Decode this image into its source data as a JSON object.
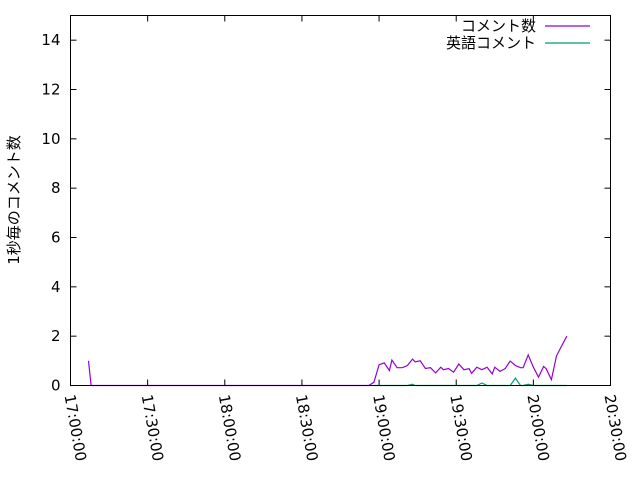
{
  "chart_data": {
    "type": "line",
    "title": "",
    "xlabel": "",
    "ylabel": "1秒毎のコメント数",
    "xlim": [
      "17:00:00",
      "20:30:00"
    ],
    "ylim": [
      0,
      15
    ],
    "xticks": [
      "17:00:00",
      "17:30:00",
      "18:00:00",
      "18:30:00",
      "19:00:00",
      "19:30:00",
      "20:00:00",
      "20:30:00"
    ],
    "yticks": [
      0,
      2,
      4,
      6,
      8,
      10,
      12,
      14
    ],
    "grid": false,
    "legend_position": "top-right",
    "series": [
      {
        "name": "コメント数",
        "color": "#9400d3",
        "x": [
          "17:07",
          "17:08",
          "18:50",
          "18:56",
          "18:58",
          "19:00",
          "19:02",
          "19:04",
          "19:05",
          "19:07",
          "19:09",
          "19:11",
          "19:13",
          "19:14",
          "19:16",
          "19:18",
          "19:20",
          "19:22",
          "19:24",
          "19:25",
          "19:27",
          "19:29",
          "19:31",
          "19:33",
          "19:35",
          "19:36",
          "19:38",
          "19:40",
          "19:42",
          "19:44",
          "19:45",
          "19:47",
          "19:49",
          "19:51",
          "19:53",
          "19:55",
          "19:56",
          "19:58",
          "20:00",
          "20:02",
          "20:04",
          "20:05",
          "20:07",
          "20:09",
          "20:11",
          "20:13"
        ],
        "values": [
          1.0,
          0,
          0,
          0,
          0.13,
          0.84,
          0.92,
          0.61,
          1.03,
          0.72,
          0.72,
          0.81,
          1.07,
          0.96,
          1.0,
          0.69,
          0.72,
          0.51,
          0.74,
          0.64,
          0.69,
          0.54,
          0.87,
          0.64,
          0.68,
          0.49,
          0.74,
          0.64,
          0.74,
          0.47,
          0.74,
          0.57,
          0.68,
          0.99,
          0.81,
          0.72,
          0.72,
          1.24,
          0.74,
          0.34,
          0.77,
          0.68,
          0.24,
          1.2,
          1.6,
          2.0
        ]
      },
      {
        "name": "英語コメント",
        "color": "#009e73",
        "x": [
          "18:58",
          "19:00",
          "19:02",
          "19:04",
          "19:05",
          "19:07",
          "19:09",
          "19:11",
          "19:13",
          "19:14",
          "19:16",
          "19:18",
          "19:20",
          "19:22",
          "19:24",
          "19:25",
          "19:27",
          "19:29",
          "19:31",
          "19:33",
          "19:35",
          "19:36",
          "19:38",
          "19:40",
          "19:42",
          "19:44",
          "19:45",
          "19:47",
          "19:49",
          "19:51",
          "19:53",
          "19:55",
          "19:56",
          "19:58",
          "20:00",
          "20:02",
          "20:04",
          "20:05",
          "20:07",
          "20:09",
          "20:11",
          "20:13"
        ],
        "values": [
          0,
          0,
          0,
          0,
          0,
          0,
          0,
          0,
          0.05,
          0,
          0,
          0,
          0,
          0,
          0,
          0,
          0,
          0,
          0,
          0,
          0,
          0,
          0,
          0.1,
          0,
          0,
          0,
          0,
          0,
          0,
          0.3,
          0,
          0,
          0.05,
          0,
          0,
          0,
          0,
          0,
          0,
          0,
          0
        ]
      }
    ]
  }
}
